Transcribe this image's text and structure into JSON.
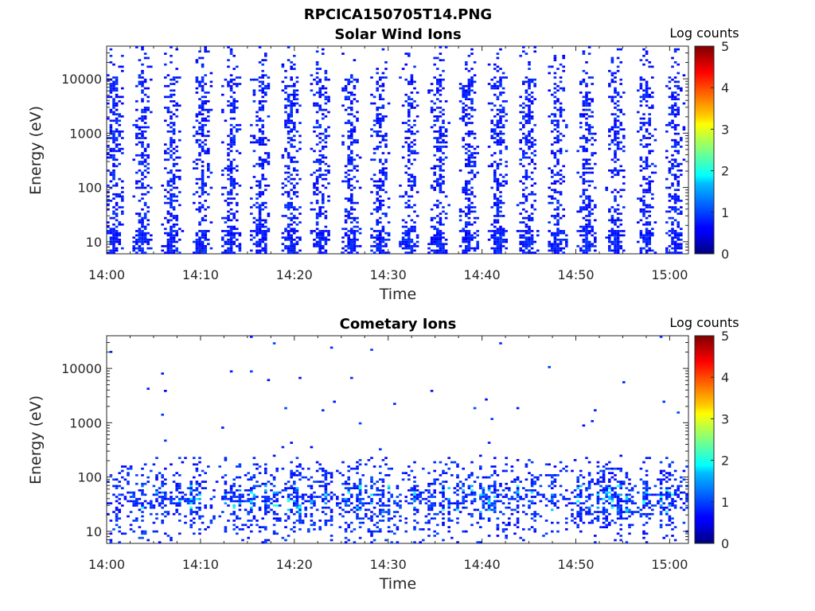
{
  "figure": {
    "title": "RPCICA150705T14.PNG"
  },
  "chart_data": [
    {
      "type": "heatmap",
      "title": "Solar Wind Ions",
      "xlabel": "Time",
      "ylabel": "Energy (eV)",
      "x_ticks": [
        "14:00",
        "14:10",
        "14:20",
        "14:30",
        "14:40",
        "14:50",
        "15:00"
      ],
      "x_range_minutes": [
        0,
        62
      ],
      "y_scale": "log",
      "y_ticks": [
        "10",
        "100",
        "1000",
        "10000"
      ],
      "y_range": [
        6,
        40000
      ],
      "colorbar": {
        "label": "Log counts",
        "ticks": [
          "0",
          "1",
          "2",
          "3",
          "4",
          "5"
        ],
        "range": [
          0,
          5
        ],
        "colormap": "jet"
      },
      "pattern": "bursts",
      "burst_times_minutes": [
        0.8,
        3.9,
        7.0,
        10.2,
        13.3,
        16.4,
        19.7,
        22.8,
        26.0,
        29.1,
        32.3,
        35.4,
        38.6,
        41.7,
        44.9,
        48.0,
        51.2,
        54.3,
        57.5,
        60.6
      ],
      "typical_log_counts": [
        0,
        1
      ]
    },
    {
      "type": "heatmap",
      "title": "Cometary Ions",
      "xlabel": "Time",
      "ylabel": "Energy (eV)",
      "x_ticks": [
        "14:00",
        "14:10",
        "14:20",
        "14:30",
        "14:40",
        "14:50",
        "15:00"
      ],
      "x_range_minutes": [
        0,
        62
      ],
      "y_scale": "log",
      "y_ticks": [
        "10",
        "100",
        "1000",
        "10000"
      ],
      "y_range": [
        6,
        40000
      ],
      "colorbar": {
        "label": "Log counts",
        "ticks": [
          "0",
          "1",
          "2",
          "3",
          "4",
          "5"
        ],
        "range": [
          0,
          5
        ],
        "colormap": "jet"
      },
      "pattern": "low-energy-band",
      "band_energy_eV": [
        15,
        300
      ],
      "peak_energy_eV": 40,
      "typical_log_counts": [
        0,
        2
      ]
    }
  ]
}
